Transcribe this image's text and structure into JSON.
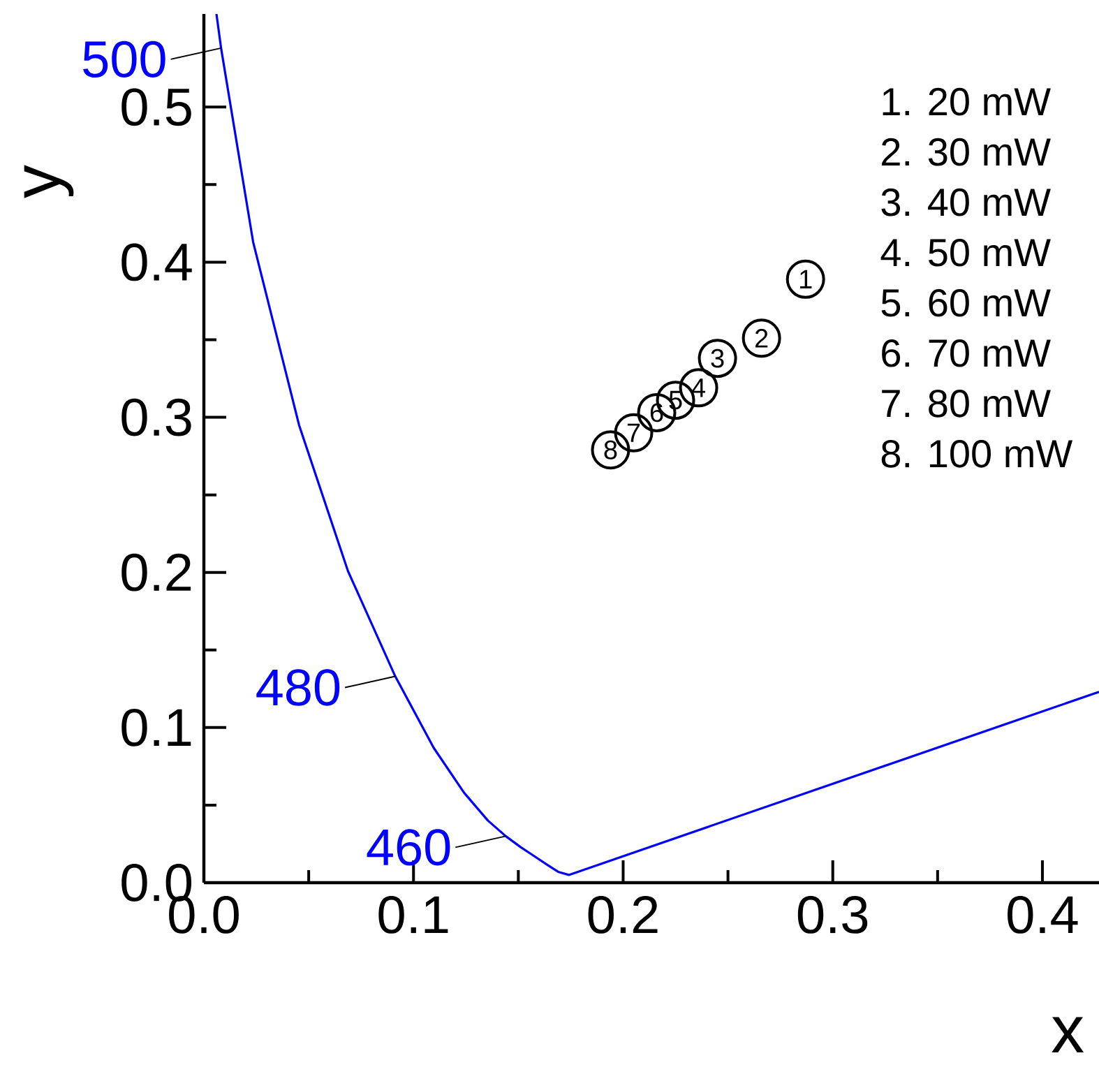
{
  "chart_data": {
    "type": "scatter",
    "xlabel": "x",
    "ylabel": "y",
    "xlim": [
      0,
      0.427
    ],
    "ylim": [
      0,
      0.56
    ],
    "xticks": [
      {
        "value": 0,
        "label": "0.0"
      },
      {
        "value": 0.1,
        "label": "0.1"
      },
      {
        "value": 0.2,
        "label": "0.2"
      },
      {
        "value": 0.3,
        "label": "0.3"
      },
      {
        "value": 0.4,
        "label": "0.4"
      }
    ],
    "yticks": [
      {
        "value": 0,
        "label": "0.0"
      },
      {
        "value": 0.1,
        "label": "0.1"
      },
      {
        "value": 0.2,
        "label": "0.2"
      },
      {
        "value": 0.3,
        "label": "0.3"
      },
      {
        "value": 0.4,
        "label": "0.4"
      },
      {
        "value": 0.5,
        "label": "0.5"
      }
    ],
    "grid": false,
    "series": [
      {
        "type": "line",
        "color": "#0000ff",
        "line_style": "solid",
        "marker": "none",
        "x": [
          0.006,
          0.0082,
          0.0235,
          0.0454,
          0.0687,
          0.0913,
          0.1096,
          0.1241,
          0.1355,
          0.144,
          0.151,
          0.1566,
          0.1644,
          0.169,
          0.1741,
          0.427
        ],
        "values": [
          0.56,
          0.538,
          0.413,
          0.295,
          0.201,
          0.133,
          0.087,
          0.058,
          0.04,
          0.03,
          0.023,
          0.018,
          0.011,
          0.007,
          0.005,
          0.123
        ]
      },
      {
        "type": "scatter",
        "color": "#000000",
        "marker": "circle",
        "x": [
          0.287,
          0.266,
          0.245,
          0.236,
          0.225,
          0.216,
          0.205,
          0.194
        ],
        "values": [
          0.389,
          0.351,
          0.338,
          0.319,
          0.311,
          0.303,
          0.29,
          0.279
        ]
      }
    ],
    "annotations": [
      {
        "text": "1",
        "x": 0.287,
        "y": 0.389
      },
      {
        "text": "2",
        "x": 0.266,
        "y": 0.351
      },
      {
        "text": "3",
        "x": 0.245,
        "y": 0.338
      },
      {
        "text": "4",
        "x": 0.236,
        "y": 0.319
      },
      {
        "text": "5",
        "x": 0.225,
        "y": 0.311
      },
      {
        "text": "6",
        "x": 0.216,
        "y": 0.303
      },
      {
        "text": "7",
        "x": 0.205,
        "y": 0.29
      },
      {
        "text": "8",
        "x": 0.194,
        "y": 0.279
      },
      {
        "text": "500",
        "x": 0.0082,
        "y": 0.538
      },
      {
        "text": "480",
        "x": 0.0913,
        "y": 0.133
      },
      {
        "text": "460",
        "x": 0.144,
        "y": 0.03
      },
      "1. 20 mW",
      "2. 30 mW",
      "3. 40 mW",
      "4. 50 mW",
      "5. 60 mW",
      "6. 70 mW",
      "7. 80 mW",
      "8. 100 mW"
    ]
  }
}
